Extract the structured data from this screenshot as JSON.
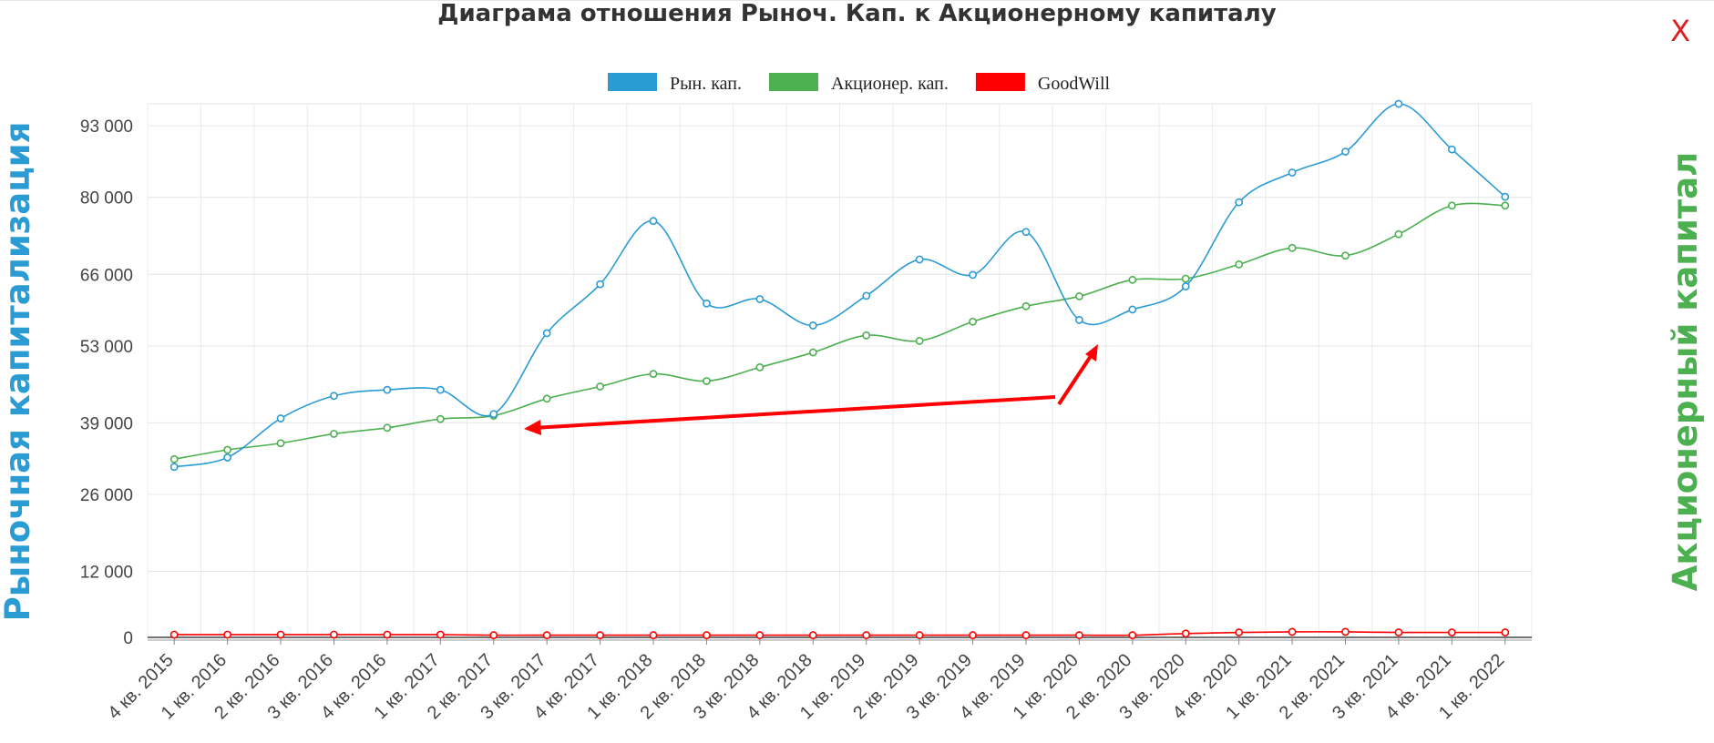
{
  "title": "Диаграма отношения Рыноч. Кап. к Акционерному капиталу",
  "close_label": "X",
  "ylabel_left": "Рыночная капитализация",
  "ylabel_right": "Акционерный капитал",
  "chart_data": {
    "type": "line",
    "title": "Диаграма отношения Рыноч. Кап. к Акционерному капиталу",
    "ylabel": "Рыночная капитализация",
    "ylabel_right": "Акционерный капитал",
    "legend_position": "top-center",
    "grid": true,
    "y_ticks": [
      0,
      12000,
      26000,
      39000,
      53000,
      66000,
      80000,
      93000
    ],
    "y_tick_labels": [
      "0",
      "12 000",
      "26 000",
      "39 000",
      "53 000",
      "66 000",
      "80 000",
      "93 000"
    ],
    "ylim": [
      0,
      97000
    ],
    "categories": [
      "4 кв. 2015",
      "1 кв. 2016",
      "2 кв. 2016",
      "3 кв. 2016",
      "4 кв. 2016",
      "1 кв. 2017",
      "2 кв. 2017",
      "3 кв. 2017",
      "4 кв. 2017",
      "1 кв. 2018",
      "2 кв. 2018",
      "3 кв. 2018",
      "4 кв. 2018",
      "1 кв. 2019",
      "2 кв. 2019",
      "3 кв. 2019",
      "4 кв. 2019",
      "1 кв. 2020",
      "2 кв. 2020",
      "3 кв. 2020",
      "4 кв. 2020",
      "1 кв. 2021",
      "2 кв. 2021",
      "3 кв. 2021",
      "4 кв. 2021",
      "1 кв. 2022"
    ],
    "series": [
      {
        "name": "Рын. кап.",
        "color": "#2b9bd3",
        "values": [
          31000,
          32700,
          39800,
          43900,
          45000,
          45000,
          40600,
          55300,
          64200,
          75700,
          60700,
          61500,
          56700,
          62100,
          68700,
          65900,
          73700,
          57700,
          59600,
          63800,
          79100,
          84500,
          88300,
          97000,
          88700,
          80100
        ]
      },
      {
        "name": "Акционер. кап.",
        "color": "#4caf50",
        "values": [
          32400,
          34100,
          35300,
          37000,
          38100,
          39700,
          40300,
          43400,
          45600,
          47900,
          46600,
          49100,
          51800,
          54900,
          53900,
          57400,
          60200,
          62000,
          65000,
          65200,
          67800,
          70800,
          69400,
          73300,
          78500,
          78500
        ]
      },
      {
        "name": "GoodWill",
        "color": "#ff0000",
        "values": [
          500,
          500,
          500,
          500,
          500,
          500,
          400,
          400,
          400,
          400,
          400,
          400,
          400,
          400,
          400,
          400,
          400,
          400,
          400,
          700,
          900,
          1000,
          1000,
          900,
          900,
          900
        ]
      }
    ]
  }
}
